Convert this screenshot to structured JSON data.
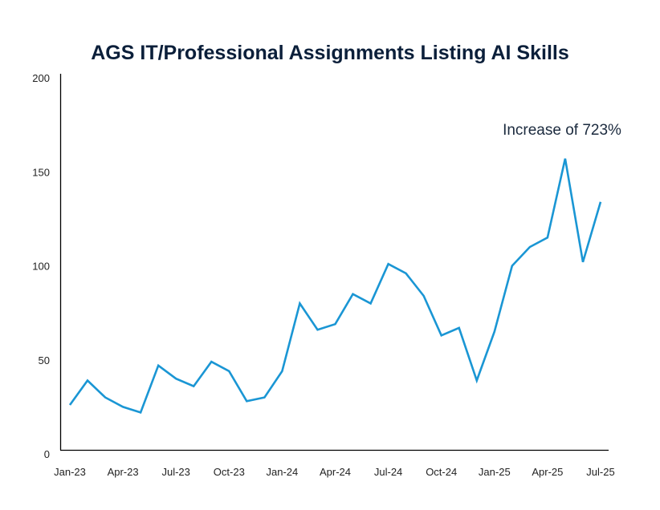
{
  "chart_data": {
    "type": "line",
    "title": "AGS IT/Professional Assignments Listing AI Skills",
    "xlabel": "",
    "ylabel": "",
    "ylim": [
      0,
      200
    ],
    "yticks": [
      0,
      50,
      100,
      150,
      200
    ],
    "grid": false,
    "legend": "none",
    "x": [
      "Jan-23",
      "Feb-23",
      "Mar-23",
      "Apr-23",
      "May-23",
      "Jun-23",
      "Jul-23",
      "Aug-23",
      "Sep-23",
      "Oct-23",
      "Nov-23",
      "Dec-23",
      "Jan-24",
      "Feb-24",
      "Mar-24",
      "Apr-24",
      "May-24",
      "Jun-24",
      "Jul-24",
      "Aug-24",
      "Sep-24",
      "Oct-24",
      "Nov-24",
      "Dec-24",
      "Jan-25",
      "Feb-25",
      "Mar-25",
      "Apr-25",
      "May-25",
      "Jun-25",
      "Jul-25"
    ],
    "xtick_labels": [
      "Jan-23",
      "Apr-23",
      "Jul-23",
      "Oct-23",
      "Jan-24",
      "Apr-24",
      "Jul-24",
      "Oct-24",
      "Jan-25",
      "Apr-25",
      "Jul-25"
    ],
    "series": [
      {
        "color": "#1a96d4",
        "values": [
          26,
          39,
          30,
          25,
          22,
          47,
          40,
          36,
          49,
          44,
          28,
          30,
          44,
          80,
          66,
          69,
          85,
          80,
          101,
          96,
          84,
          63,
          67,
          39,
          65,
          100,
          110,
          115,
          157,
          102,
          134
        ]
      }
    ],
    "annotations": [
      {
        "text": "Increase of 723%"
      }
    ]
  }
}
